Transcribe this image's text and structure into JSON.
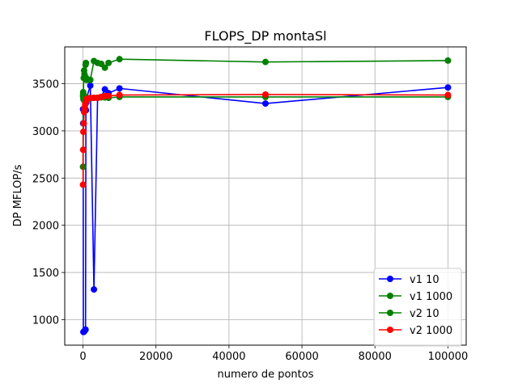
{
  "chart_data": {
    "type": "line",
    "title": "FLOPS_DP montaSl",
    "xlabel": "numero de pontos",
    "ylabel": "DP MFLOP/s",
    "xlim": [
      -5000,
      105000
    ],
    "ylim": [
      730,
      3890
    ],
    "xticks": [
      0,
      20000,
      40000,
      60000,
      80000,
      100000
    ],
    "yticks": [
      1000,
      1500,
      2000,
      2500,
      3000,
      3500
    ],
    "grid": true,
    "legend_position": "lower-right",
    "series": [
      {
        "name": "v1 10",
        "color": "#0000ff",
        "x": [
          10,
          50,
          100,
          200,
          300,
          400,
          500,
          600,
          700,
          800,
          900,
          1000,
          2000,
          3000,
          4000,
          5000,
          6000,
          7000,
          10000,
          50000,
          100000
        ],
        "y": [
          3230,
          3080,
          870,
          870,
          875,
          880,
          885,
          890,
          895,
          3220,
          3300,
          3350,
          3480,
          1320,
          3350,
          3360,
          3440,
          3400,
          3450,
          3290,
          3460
        ]
      },
      {
        "name": "v1 1000",
        "color": "#008000",
        "x": [
          10,
          50,
          100,
          200,
          300,
          400,
          500,
          600,
          700,
          800,
          900,
          1000,
          2000,
          3000,
          4000,
          5000,
          6000,
          7000,
          10000,
          50000,
          100000
        ],
        "y": [
          3370,
          3390,
          3340,
          3330,
          3340,
          3350,
          3345,
          3350,
          3345,
          3355,
          3350,
          3350,
          3345,
          3350,
          3350,
          3355,
          3355,
          3350,
          3360,
          3360,
          3360
        ]
      },
      {
        "name": "v2 10",
        "color": "#008000",
        "x": [
          10,
          50,
          100,
          200,
          300,
          400,
          500,
          600,
          700,
          800,
          900,
          1000,
          2000,
          3000,
          4000,
          5000,
          6000,
          7000,
          10000,
          50000,
          100000
        ],
        "y": [
          2620,
          3410,
          3380,
          3560,
          3640,
          3600,
          3580,
          3560,
          3700,
          3720,
          3560,
          3540,
          3540,
          3740,
          3720,
          3710,
          3670,
          3720,
          3760,
          3730,
          3745
        ]
      },
      {
        "name": "v2 1000",
        "color": "#ff0000",
        "x": [
          10,
          50,
          100,
          200,
          300,
          400,
          500,
          600,
          700,
          800,
          900,
          1000,
          2000,
          3000,
          4000,
          5000,
          6000,
          7000,
          10000,
          50000,
          100000
        ],
        "y": [
          2430,
          2800,
          2990,
          3080,
          3200,
          3230,
          3250,
          3280,
          3300,
          3310,
          3320,
          3340,
          3350,
          3350,
          3350,
          3360,
          3370,
          3370,
          3380,
          3385,
          3380
        ]
      }
    ]
  }
}
